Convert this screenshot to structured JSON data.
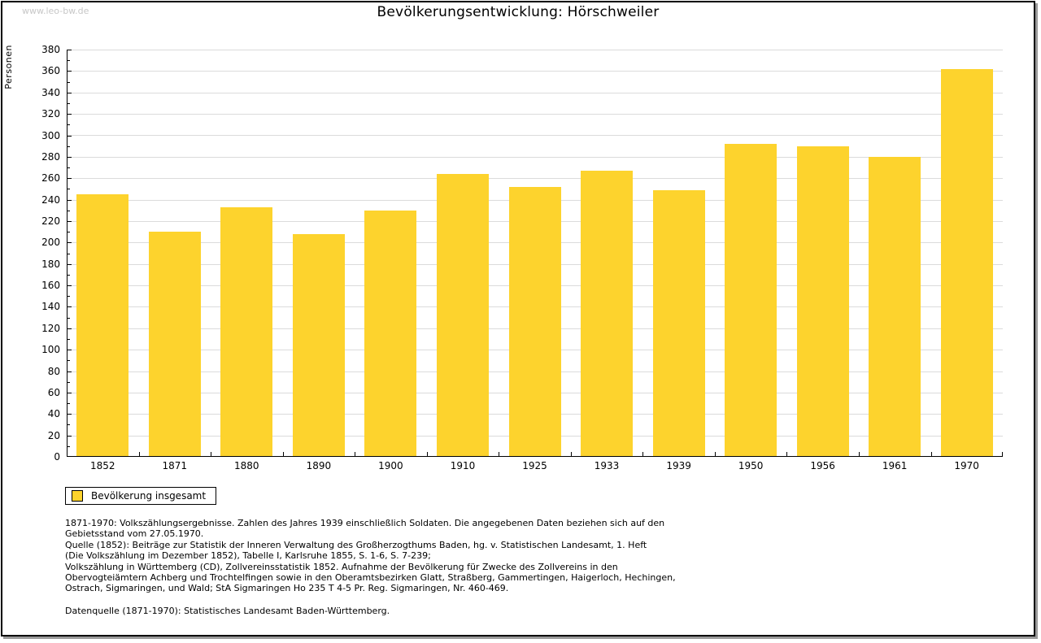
{
  "watermark": "www.leo-bw.de",
  "title": "Bevölkerungsentwicklung: Hörschweiler",
  "legend": {
    "label": "Bevölkerung insgesamt"
  },
  "colors": {
    "bar": "#FDD32D",
    "grid": "#DBDBDB",
    "axis": "#000000",
    "watermark": "#C7C7C7"
  },
  "chart_data": {
    "type": "bar",
    "title": "Bevölkerungsentwicklung: Hörschweiler",
    "ylabel": "Personen",
    "xlabel": "",
    "categories": [
      "1852",
      "1871",
      "1880",
      "1890",
      "1900",
      "1910",
      "1925",
      "1933",
      "1939",
      "1950",
      "1956",
      "1961",
      "1970"
    ],
    "series": [
      {
        "name": "Bevölkerung insgesamt",
        "values": [
          245,
          210,
          233,
          208,
          230,
          264,
          252,
          267,
          249,
          292,
          290,
          280,
          362
        ]
      }
    ],
    "ylim": [
      0,
      380
    ],
    "yticks": [
      0,
      20,
      40,
      60,
      80,
      100,
      120,
      140,
      160,
      180,
      200,
      220,
      240,
      260,
      280,
      300,
      320,
      340,
      360,
      380
    ],
    "minor_tick_step": 10,
    "grid": true,
    "bar_color": "#FDD32D",
    "legend_position": "bottom-left"
  },
  "footer": {
    "lines": [
      "1871-1970: Volkszählungsergebnisse. Zahlen des Jahres 1939 einschließlich Soldaten. Die angegebenen Daten beziehen sich auf den",
      "Gebietsstand vom 27.05.1970.",
      "Quelle (1852): Beiträge zur Statistik der Inneren Verwaltung des Großherzogthums Baden, hg. v. Statistischen Landesamt, 1. Heft",
      "(Die Volkszählung im Dezember 1852), Tabelle I, Karlsruhe 1855, S. 1-6, S. 7-239;",
      "Volkszählung in Württemberg (CD), Zollvereinsstatistik 1852. Aufnahme der Bevölkerung für Zwecke des Zollvereins in den",
      "Obervogteiämtern Achberg und Trochtelfingen sowie in den Oberamtsbezirken Glatt, Straßberg, Gammertingen, Haigerloch, Hechingen,",
      "Ostrach, Sigmaringen, und Wald; StA Sigmaringen Ho 235 T 4-5 Pr. Reg. Sigmaringen, Nr. 460-469."
    ],
    "datasource": "Datenquelle (1871-1970): Statistisches Landesamt Baden-Württemberg."
  }
}
